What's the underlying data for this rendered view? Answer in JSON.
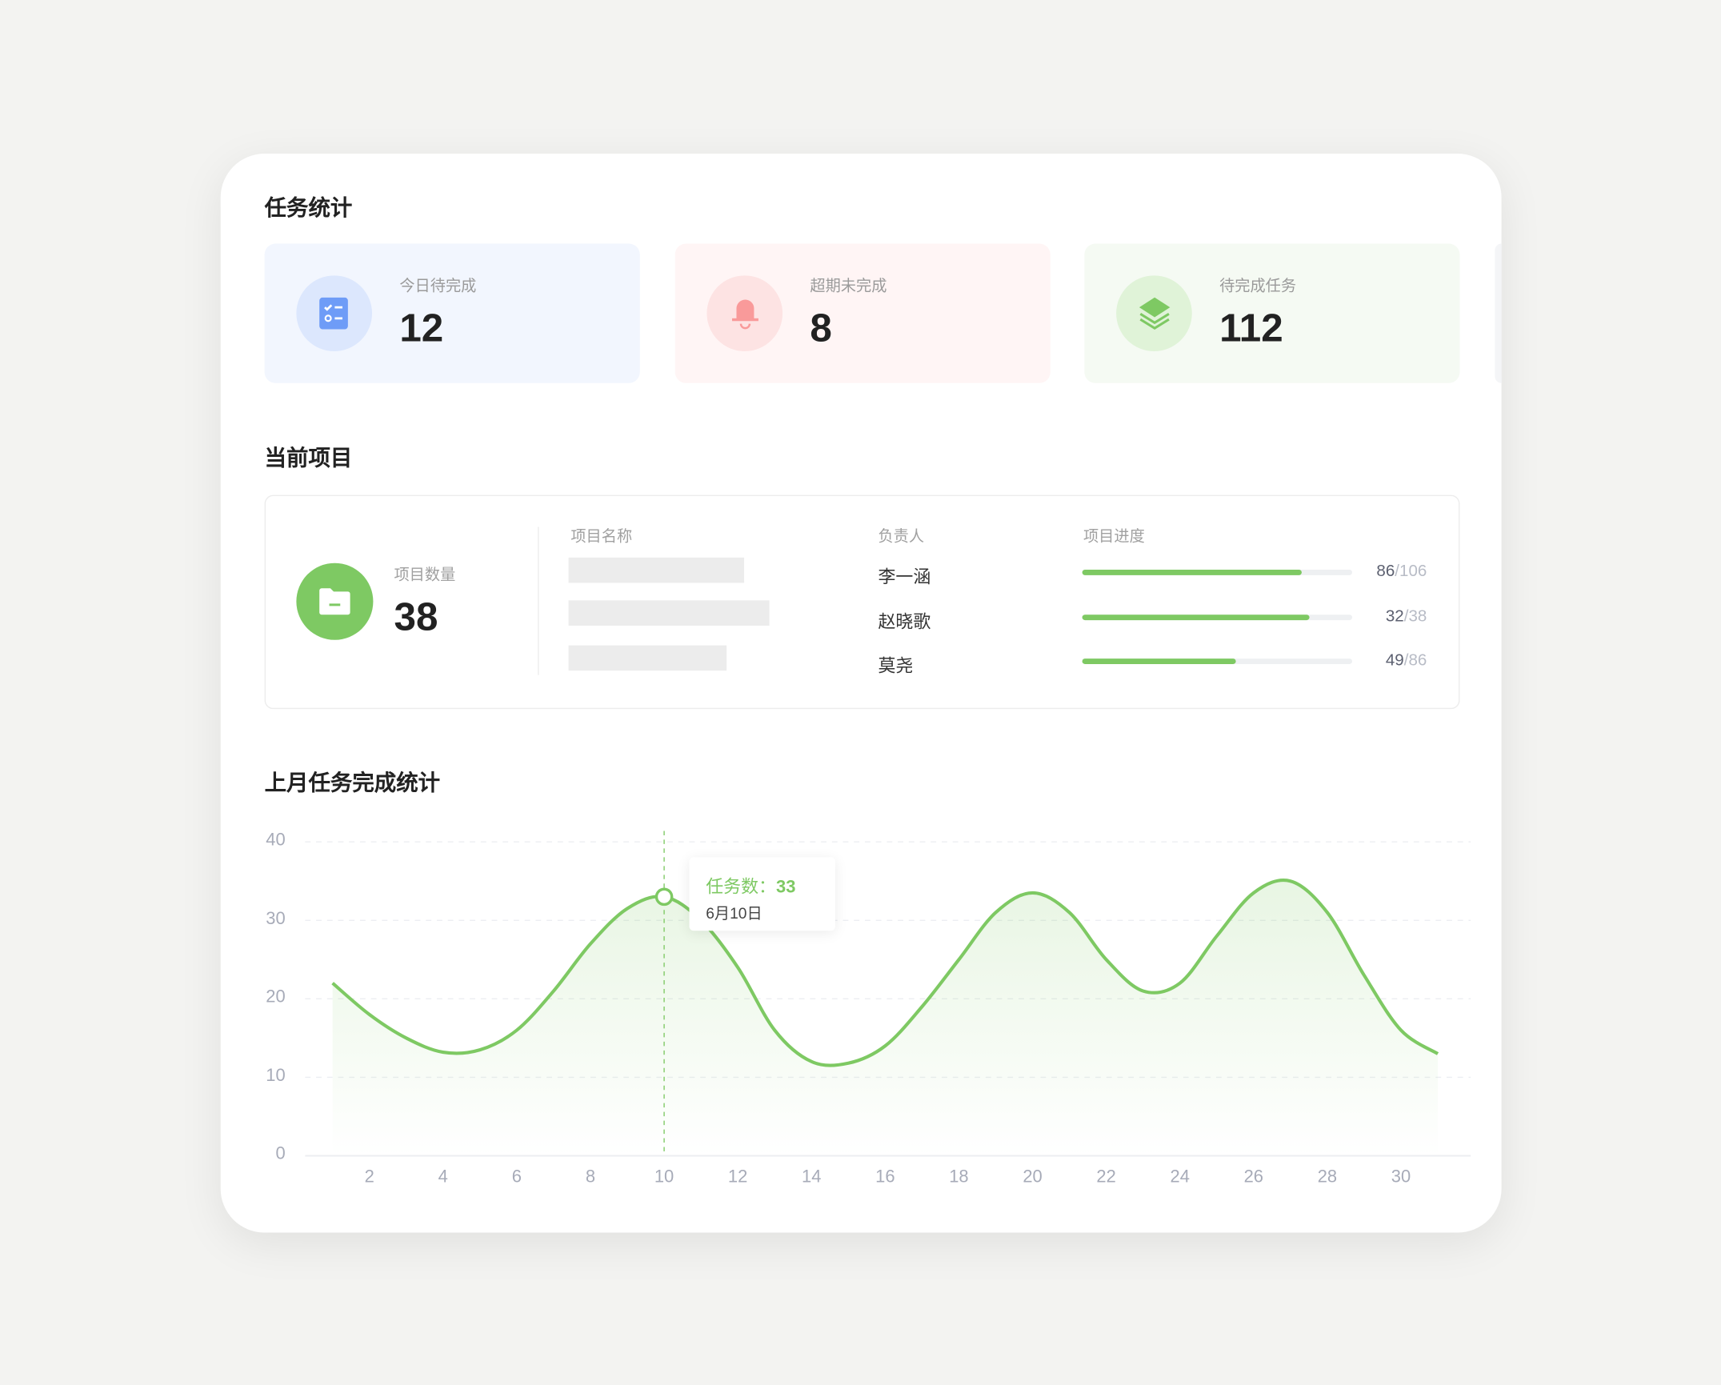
{
  "task_stats": {
    "title": "任务统计",
    "cards": [
      {
        "label": "今日待完成",
        "value": "12",
        "icon": "checklist-icon",
        "bg": "#f2f6fe",
        "circle": "#dce7fd",
        "accent": "#6e9cf7"
      },
      {
        "label": "超期未完成",
        "value": "8",
        "icon": "bell-icon",
        "bg": "#fff5f5",
        "circle": "#fde3e3",
        "accent": "#f99a9a"
      },
      {
        "label": "待完成任务",
        "value": "112",
        "icon": "layers-icon",
        "bg": "#f5faf3",
        "circle": "#e0f3d8",
        "accent": "#7ec963"
      }
    ]
  },
  "current_projects": {
    "title": "当前项目",
    "count_label": "项目数量",
    "count": "38",
    "columns": {
      "name": "项目名称",
      "owner": "负责人",
      "progress": "项目进度"
    },
    "rows": [
      {
        "owner": "李一涵",
        "done": 86,
        "total": 106,
        "done_text": "86",
        "total_text": "/106"
      },
      {
        "owner": "赵晓歌",
        "done": 32,
        "total": 38,
        "done_text": "32",
        "total_text": "/38"
      },
      {
        "owner": "莫尧",
        "done": 49,
        "total": 86,
        "done_text": "49",
        "total_text": "/86"
      }
    ]
  },
  "chart_title": "上月任务完成统计",
  "chart_data": {
    "type": "area",
    "x": [
      1,
      2,
      3,
      4,
      5,
      6,
      7,
      8,
      9,
      10,
      11,
      12,
      13,
      14,
      15,
      16,
      17,
      18,
      19,
      20,
      21,
      22,
      23,
      24,
      25,
      26,
      27,
      28,
      29,
      30,
      31
    ],
    "values": [
      22,
      18,
      15,
      13.2,
      13.5,
      16,
      21,
      27,
      31.5,
      33,
      30,
      24,
      16,
      12,
      11.8,
      14,
      19,
      25,
      31,
      33.5,
      31,
      25,
      21,
      22,
      28,
      33.5,
      35,
      31,
      23,
      16,
      13
    ],
    "x_ticks": [
      "2",
      "4",
      "6",
      "8",
      "10",
      "12",
      "14",
      "16",
      "18",
      "20",
      "22",
      "24",
      "26",
      "28",
      "30"
    ],
    "y_ticks": [
      "0",
      "10",
      "20",
      "30",
      "40"
    ],
    "ylim": [
      0,
      40
    ],
    "grid": true,
    "color": "#7ec963",
    "tooltip": {
      "day": 10,
      "label": "任务数：",
      "value": "33",
      "date": "6月10日"
    }
  }
}
